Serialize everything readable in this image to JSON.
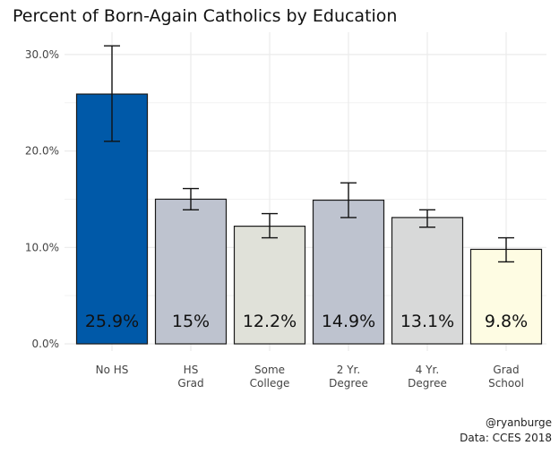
{
  "chart_data": {
    "type": "bar",
    "title": "Percent of Born-Again Catholics by Education",
    "xlabel": "",
    "ylabel": "",
    "ylim": [
      0,
      0.32
    ],
    "grid": true,
    "y_ticks": [
      0,
      0.1,
      0.2,
      0.3
    ],
    "y_tick_labels": [
      "0.0%",
      "10.0%",
      "20.0%",
      "30.0%"
    ],
    "categories": [
      [
        "No HS"
      ],
      [
        "HS",
        "Grad"
      ],
      [
        "Some",
        "College"
      ],
      [
        "2 Yr.",
        "Degree"
      ],
      [
        "4 Yr.",
        "Degree"
      ],
      [
        "Grad",
        "School"
      ]
    ],
    "values": [
      0.259,
      0.15,
      0.122,
      0.149,
      0.131,
      0.098
    ],
    "data_labels": [
      "25.9%",
      "15%",
      "12.2%",
      "14.9%",
      "13.1%",
      "9.8%"
    ],
    "error_low": [
      0.21,
      0.139,
      0.11,
      0.131,
      0.121,
      0.085
    ],
    "error_high": [
      0.309,
      0.161,
      0.135,
      0.167,
      0.139,
      0.11
    ],
    "colors": [
      "#0059a8",
      "#bec3cf",
      "#e0e1d9",
      "#bec3cf",
      "#d8d9d9",
      "#fefce3"
    ],
    "caption": [
      "@ryanburge",
      "Data: CCES 2018"
    ]
  }
}
